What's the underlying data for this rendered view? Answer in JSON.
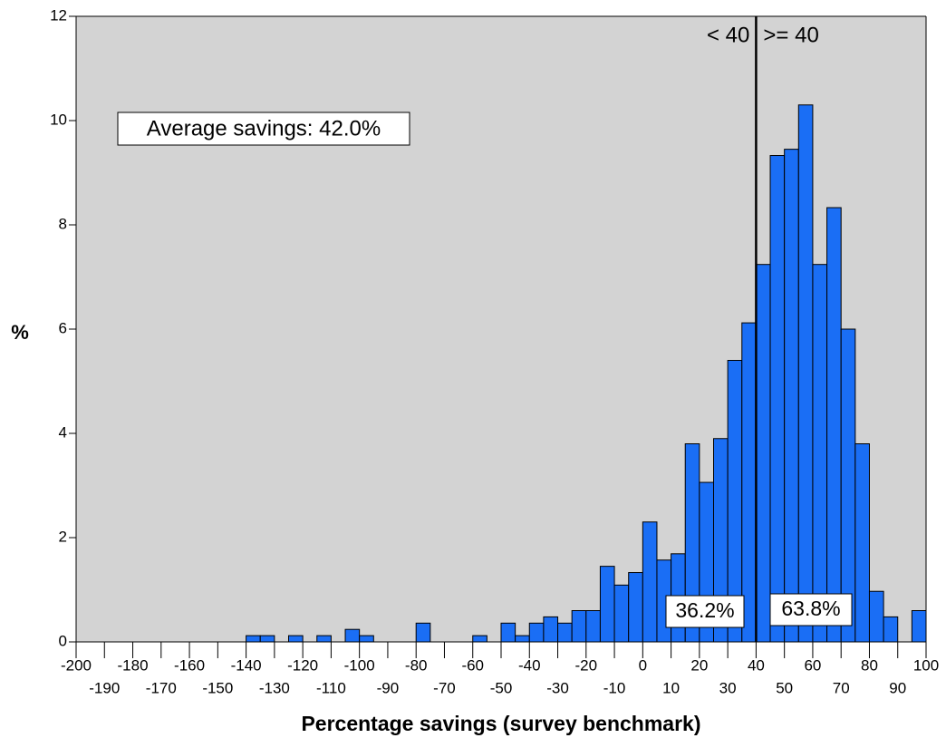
{
  "chart_data": {
    "type": "histogram",
    "x_label": "Percentage savings (survey benchmark)",
    "y_label": "%",
    "color": "#1a6ef5",
    "background": "#d3d3d3",
    "bins": [
      -200,
      -195,
      -190,
      -185,
      -180,
      -175,
      -170,
      -165,
      -160,
      -155,
      -150,
      -145,
      -140,
      -135,
      -130,
      -125,
      -120,
      -115,
      -110,
      -105,
      -100,
      -95,
      -90,
      -85,
      -80,
      -75,
      -70,
      -65,
      -60,
      -55,
      -50,
      -45,
      -40,
      -35,
      -30,
      -25,
      -20,
      -15,
      -10,
      -5,
      0,
      5,
      10,
      15,
      20,
      25,
      30,
      35,
      40,
      45,
      50,
      55,
      60,
      65,
      70,
      75,
      80,
      85,
      90,
      95,
      100
    ],
    "counts": [
      0,
      0,
      0,
      0,
      0,
      0,
      0,
      0,
      0,
      0,
      0,
      0,
      0.12,
      0.12,
      0,
      0.12,
      0,
      0.12,
      0,
      0.24,
      0.12,
      0,
      0,
      0,
      0.36,
      0,
      0,
      0,
      0.12,
      0,
      0.36,
      0.12,
      0.36,
      0.48,
      0.36,
      0.6,
      0.6,
      1.45,
      1.09,
      1.33,
      2.3,
      1.57,
      1.69,
      3.8,
      3.06,
      3.9,
      5.4,
      6.12,
      7.24,
      9.33,
      9.45,
      10.3,
      7.24,
      8.33,
      6.0,
      3.8,
      0.97,
      0.48,
      0,
      0.6
    ],
    "xlim": [
      -200,
      100
    ],
    "ylim": [
      0,
      12
    ],
    "xticks": [
      -200,
      -190,
      -180,
      -170,
      -160,
      -150,
      -140,
      -130,
      -120,
      -110,
      -100,
      -90,
      -80,
      -70,
      -60,
      -50,
      -40,
      -30,
      -20,
      -10,
      0,
      10,
      20,
      30,
      40,
      50,
      60,
      70,
      80,
      90,
      100
    ],
    "yticks": [
      0,
      2,
      4,
      6,
      8,
      10,
      12
    ],
    "threshold": 40,
    "threshold_left_label": "< 40",
    "threshold_right_label": ">= 40",
    "average_annotation": "Average savings: 42.0%",
    "left_share_label": "36.2%",
    "right_share_label": "63.8%"
  }
}
